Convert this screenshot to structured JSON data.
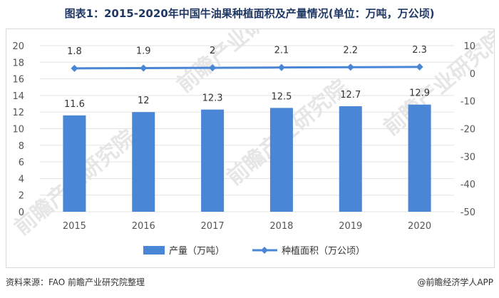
{
  "title": "图表1：2015-2020年中国牛油果种植面积及产量情况(单位：万吨，万公顷)",
  "footer": {
    "source": "资料来源：FAO 前瞻产业研究院整理",
    "app": "@前瞻经济学人APP"
  },
  "watermark": "前瞻产业研究院",
  "colors": {
    "bar": "#4a86d6",
    "line": "#4a86d6"
  },
  "chart_data": {
    "type": "bar",
    "categories": [
      "2015",
      "2016",
      "2017",
      "2018",
      "2019",
      "2020"
    ],
    "series": [
      {
        "name": "产量（万吨）",
        "type": "bar",
        "axis": "left",
        "values": [
          11.6,
          12,
          12.3,
          12.5,
          12.7,
          12.9
        ]
      },
      {
        "name": "种植面积（万公顷）",
        "type": "line",
        "axis": "right",
        "values": [
          1.8,
          1.9,
          2,
          2.1,
          2.2,
          2.3
        ]
      }
    ],
    "y_left": {
      "min": 0,
      "max": 20,
      "ticks": [
        "0",
        "2",
        "4",
        "6",
        "8",
        "10",
        "12",
        "14",
        "16",
        "18",
        "20"
      ]
    },
    "y_right": {
      "min": -50,
      "max": 10,
      "ticks": [
        "-50",
        "-40",
        "-30",
        "-20",
        "-10",
        "0",
        "10"
      ]
    },
    "grid": true,
    "legend": "bottom"
  }
}
